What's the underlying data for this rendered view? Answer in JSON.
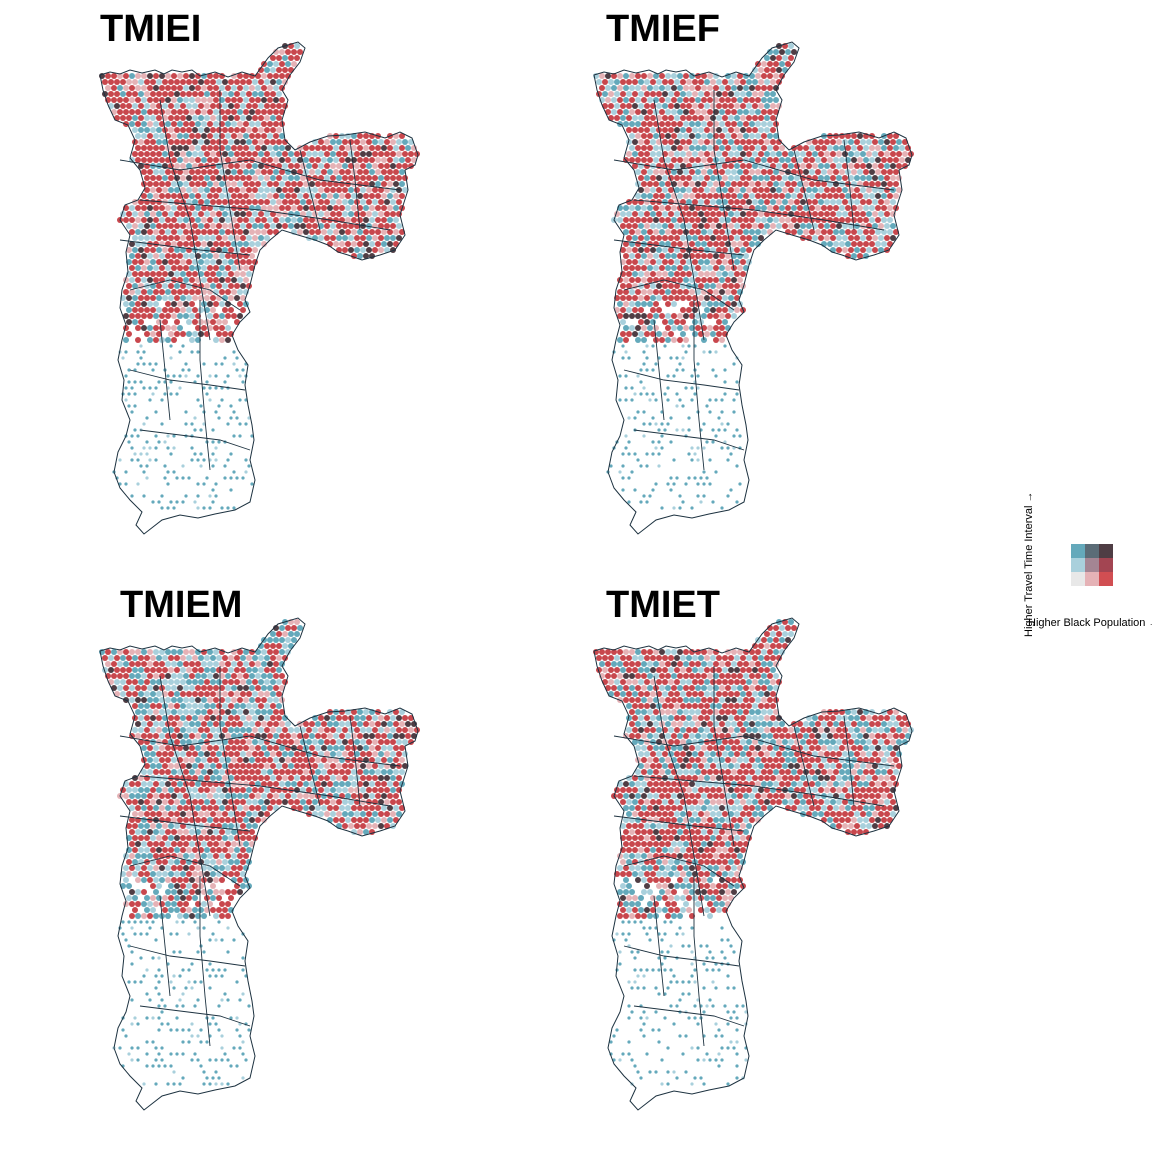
{
  "panels": [
    {
      "title": "TMIEI",
      "seed": 11,
      "red_bias": 0.72
    },
    {
      "title": "TMIEF",
      "seed": 23,
      "red_bias": 0.66
    },
    {
      "title": "TMIEM",
      "seed": 37,
      "red_bias": 0.58
    },
    {
      "title": "TMIET",
      "seed": 51,
      "red_bias": 0.64
    }
  ],
  "legend": {
    "x_label": "Higher Black Population →",
    "y_label": "Higher Travel Time Interval →",
    "colors": [
      [
        "#64a9bb",
        "#5b6c77",
        "#4f3d44"
      ],
      [
        "#a9d0dc",
        "#a48593",
        "#a34552"
      ],
      [
        "#e8e8e8",
        "#e5b2b6",
        "#d14e52"
      ]
    ]
  },
  "map_colors": {
    "outline": "#1d3240",
    "low_black_high_time": "#64a9bb",
    "mid": "#a9d0dc",
    "high_black_low_time": "#c8474d",
    "pink": "#e5b2b6",
    "dark": "#4f3d44"
  }
}
